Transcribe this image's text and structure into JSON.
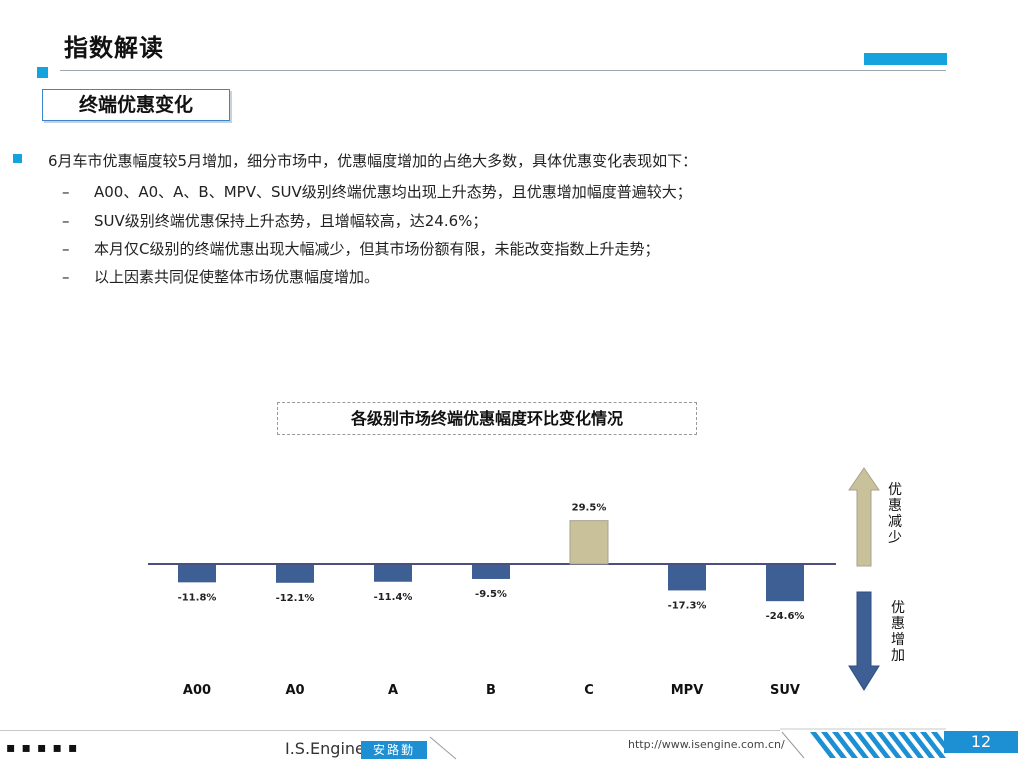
{
  "header": {
    "title": "指数解读",
    "subtitle": "终端优惠变化"
  },
  "bullets": {
    "main": "6月车市优惠幅度较5月增加，细分市场中，优惠幅度增加的占绝大多数，具体优惠变化表现如下：",
    "items": [
      {
        "dash": "–",
        "text": "A00、A0、A、B、MPV、SUV级别终端优惠均出现上升态势，且优惠增加幅度普遍较大；"
      },
      {
        "dash": "–",
        "text": "SUV级别终端优惠保持上升态势，且增幅较高，达24.6%；"
      },
      {
        "dash": "–",
        "text": "本月仅C级别的终端优惠出现大幅减少，但其市场份额有限，未能改变指数上升走势；"
      },
      {
        "dash": "–",
        "text": "以上因素共同促使整体市场优惠幅度增加。"
      }
    ]
  },
  "chart_data": {
    "type": "bar",
    "title": "各级别市场终端优惠幅度环比变化情况",
    "categories": [
      "A00",
      "A0",
      "A",
      "B",
      "C",
      "MPV",
      "SUV"
    ],
    "values": [
      -11.8,
      -12.1,
      -11.4,
      -9.5,
      29.5,
      -17.3,
      -24.6
    ],
    "labels": [
      "-11.8%",
      "-12.1%",
      "-11.4%",
      "-9.5%",
      "29.5%",
      "-17.3%",
      "-24.6%"
    ],
    "colors": {
      "negative": "#3d5f93",
      "positive": "#c8c19a",
      "axis": "#4a4f80"
    },
    "grid": false
  },
  "legend": {
    "up_label": "优惠减少",
    "down_label": "优惠增加",
    "up_color": "#c8c19a",
    "down_color": "#3d5f93"
  },
  "footer": {
    "dots": "▪▪▪▪▪",
    "brand": "I.S.Engine",
    "brand_cn": "安路勤",
    "url": "http://www.isengine.com.cn/",
    "page": "12"
  }
}
